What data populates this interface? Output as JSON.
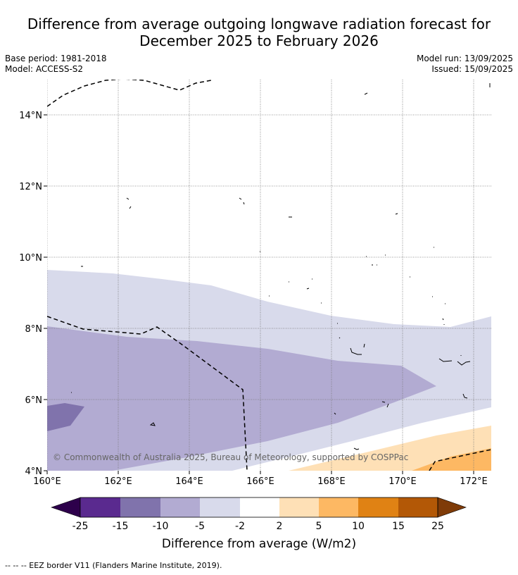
{
  "title_line1": "Difference from average outgoing longwave radiation forecast for",
  "title_line2": "December 2025 to February 2026",
  "meta": {
    "base_period": "Base period: 1981-2018",
    "model": "Model: ACCESS-S2",
    "model_run": "Model run: 13/09/2025",
    "issued": "Issued: 15/09/2025"
  },
  "map": {
    "lon_labels": [
      "160°E",
      "162°E",
      "164°E",
      "166°E",
      "168°E",
      "170°E",
      "172°E"
    ],
    "lat_labels": [
      "14°N",
      "12°N",
      "10°N",
      "8°N",
      "6°N",
      "4°N"
    ],
    "copyright": "© Commonwealth of Australia 2025, Bureau of Meteorology, supported by COSPPac"
  },
  "colorbar": {
    "ticks": [
      "-25",
      "-15",
      "-10",
      "-5",
      "-2",
      "2",
      "5",
      "10",
      "15",
      "25"
    ],
    "colors": [
      "#2d004b",
      "#5a2a8f",
      "#8073ac",
      "#b2abd2",
      "#d8daeb",
      "#ffffff",
      "#fee0b6",
      "#fdb863",
      "#e08214",
      "#b35806",
      "#7f3b08"
    ],
    "label": "Difference from average (W/m2)"
  },
  "footnote": "--  --  -- EEZ border V11 (Flanders Marine Institute, 2019)."
}
